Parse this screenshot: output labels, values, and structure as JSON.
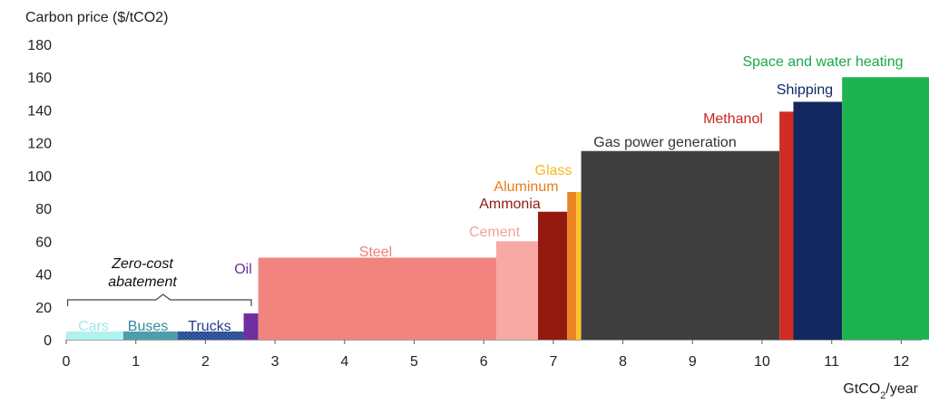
{
  "chart_data": {
    "type": "bar",
    "title": "Carbon price ($/tCO2)",
    "xlabel": "GtCO2/year",
    "ylabel": "Carbon price ($/tCO2)",
    "xlim": [
      0,
      12.4
    ],
    "ylim": [
      0,
      180
    ],
    "x_ticks": [
      0,
      1,
      2,
      3,
      4,
      5,
      6,
      7,
      8,
      9,
      10,
      11,
      12
    ],
    "y_ticks": [
      0,
      20,
      40,
      60,
      80,
      100,
      120,
      140,
      160,
      180
    ],
    "grid": false,
    "series": [
      {
        "name": "Cars",
        "x_start": 0.0,
        "x_end": 0.82,
        "value": 5,
        "color": "#aaf0ef",
        "label_color": "#9fe9e9",
        "pattern": "dots"
      },
      {
        "name": "Buses",
        "x_start": 0.82,
        "x_end": 1.6,
        "value": 5,
        "color": "#3e95a6",
        "label_color": "#2f8ca0",
        "pattern": "dots"
      },
      {
        "name": "Trucks",
        "x_start": 1.6,
        "x_end": 2.55,
        "value": 5,
        "color": "#1f4690",
        "label_color": "#1e3f86",
        "pattern": "dots"
      },
      {
        "name": "Oil",
        "x_start": 2.55,
        "x_end": 2.76,
        "value": 16,
        "color": "#6f2fa0",
        "label_color": "#6f2fa0"
      },
      {
        "name": "Steel",
        "x_start": 2.76,
        "x_end": 6.18,
        "value": 50,
        "color": "#f1847e",
        "label_color": "#ef7f78"
      },
      {
        "name": "Cement",
        "x_start": 6.18,
        "x_end": 6.78,
        "value": 60,
        "color": "#f6aaa3",
        "label_color": "#f4a39c"
      },
      {
        "name": "Ammonia",
        "x_start": 6.78,
        "x_end": 7.2,
        "value": 78,
        "color": "#941a10",
        "label_color": "#8d1a10"
      },
      {
        "name": "Aluminum",
        "x_start": 7.2,
        "x_end": 7.33,
        "value": 90,
        "color": "#ec8424",
        "label_color": "#e47d1f"
      },
      {
        "name": "Glass",
        "x_start": 7.33,
        "x_end": 7.4,
        "value": 90,
        "color": "#fbc328",
        "label_color": "#f5b91d"
      },
      {
        "name": "Gas power generation",
        "x_start": 7.4,
        "x_end": 10.25,
        "value": 115,
        "color": "#3f3f3f",
        "label_color": "#333333"
      },
      {
        "name": "Methanol",
        "x_start": 10.25,
        "x_end": 10.45,
        "value": 139,
        "color": "#cf2c22",
        "label_color": "#c8261f"
      },
      {
        "name": "Shipping",
        "x_start": 10.45,
        "x_end": 11.15,
        "value": 145,
        "color": "#12285e",
        "label_color": "#102863"
      },
      {
        "name": "Space and water heating",
        "x_start": 11.15,
        "x_end": 12.4,
        "value": 160,
        "color": "#1db350",
        "label_color": "#1aa74a"
      }
    ],
    "annotations": [
      {
        "text": "Zero-cost",
        "type": "bracket-label"
      },
      {
        "text": "abatement",
        "type": "bracket-label"
      }
    ]
  }
}
